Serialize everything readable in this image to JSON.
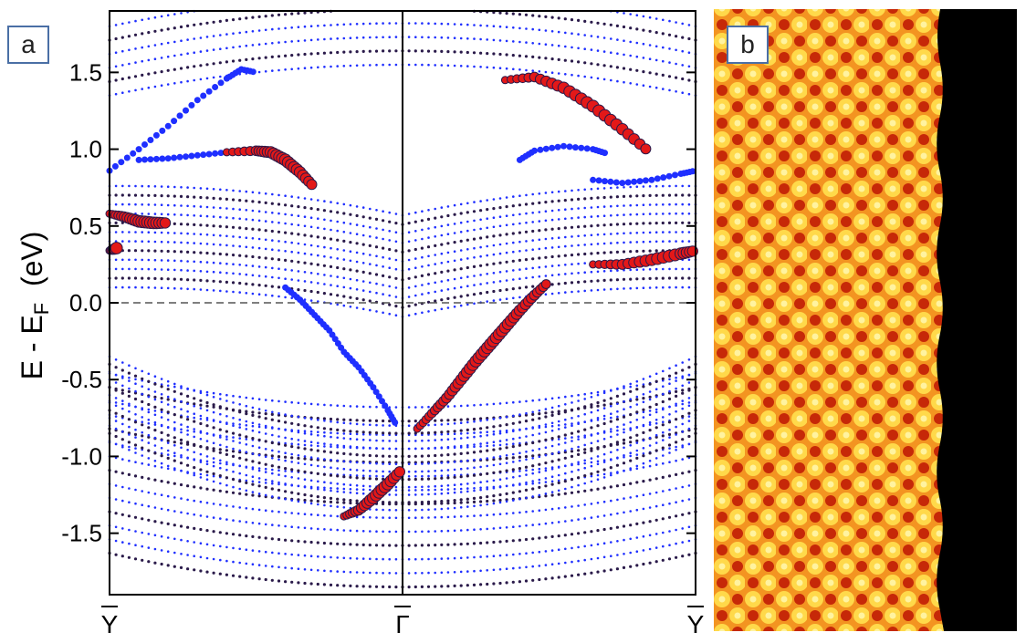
{
  "panels": {
    "a": {
      "label": "a"
    },
    "b": {
      "label": "b"
    }
  },
  "colors": {
    "blue": "#1f2fff",
    "red": "#e31818",
    "dark": "#2a1a4a",
    "stm_bright": "#ffe55a",
    "stm_mid": "#f08a1a",
    "stm_dark": "#a61200",
    "stm_edge": "#000000"
  },
  "chart_data": {
    "type": "scatter",
    "title": "",
    "xlabel": "",
    "ylabel_main": "E - E",
    "ylabel_sub": "F",
    "ylabel_unit": "(eV)",
    "xlim": [
      -1,
      1
    ],
    "ylim": [
      -1.9,
      1.9
    ],
    "x_ticks": [
      {
        "value": -1,
        "label": "Y"
      },
      {
        "value": 0,
        "label": "Γ"
      },
      {
        "value": 1,
        "label": "Y"
      }
    ],
    "y_ticks": [
      {
        "value": 1.5,
        "label": "1.5"
      },
      {
        "value": 1.0,
        "label": "1.0"
      },
      {
        "value": 0.5,
        "label": "0.5"
      },
      {
        "value": 0.0,
        "label": "0.0"
      },
      {
        "value": -0.5,
        "label": "-0.5"
      },
      {
        "value": -1.0,
        "label": "-1.0"
      },
      {
        "value": -1.5,
        "label": "-1.5"
      }
    ],
    "fermi_level": 0.0,
    "gamma_line": 0.0,
    "featured_bands": [
      {
        "name": "blue-left-upper",
        "color": "blue",
        "points": [
          [
            -1,
            0.86
          ],
          [
            -0.9,
            1.0
          ],
          [
            -0.8,
            1.15
          ],
          [
            -0.7,
            1.32
          ],
          [
            -0.6,
            1.46
          ],
          [
            -0.55,
            1.52
          ],
          [
            -0.5,
            1.5
          ]
        ]
      },
      {
        "name": "blue-left-flat",
        "color": "blue",
        "points": [
          [
            -0.9,
            0.93
          ],
          [
            -0.8,
            0.94
          ],
          [
            -0.7,
            0.96
          ],
          [
            -0.6,
            0.98
          ],
          [
            -0.5,
            0.98
          ],
          [
            -0.45,
            0.97
          ]
        ]
      },
      {
        "name": "red-left-hump",
        "color": "red",
        "points": [
          [
            -0.6,
            0.98
          ],
          [
            -0.5,
            0.99
          ],
          [
            -0.45,
            0.98
          ],
          [
            -0.4,
            0.93
          ],
          [
            -0.35,
            0.85
          ],
          [
            -0.3,
            0.75
          ]
        ]
      },
      {
        "name": "red-left-edge",
        "color": "red",
        "points": [
          [
            -1,
            0.58
          ],
          [
            -0.95,
            0.56
          ],
          [
            -0.9,
            0.53
          ],
          [
            -0.85,
            0.52
          ],
          [
            -0.8,
            0.52
          ]
        ]
      },
      {
        "name": "red-left-low",
        "color": "red",
        "points": [
          [
            -1,
            0.34
          ],
          [
            -0.97,
            0.36
          ]
        ]
      },
      {
        "name": "blue-diagonal",
        "color": "blue",
        "points": [
          [
            -0.4,
            0.1
          ],
          [
            -0.35,
            0.02
          ],
          [
            -0.3,
            -0.08
          ],
          [
            -0.25,
            -0.18
          ],
          [
            -0.2,
            -0.32
          ],
          [
            -0.15,
            -0.42
          ],
          [
            -0.1,
            -0.55
          ],
          [
            -0.05,
            -0.7
          ],
          [
            -0.02,
            -0.8
          ]
        ]
      },
      {
        "name": "red-lower-left",
        "color": "red",
        "points": [
          [
            -0.2,
            -1.39
          ],
          [
            -0.15,
            -1.35
          ],
          [
            -0.1,
            -1.27
          ],
          [
            -0.05,
            -1.18
          ],
          [
            0,
            -1.08
          ]
        ]
      },
      {
        "name": "red-right-diagonal",
        "color": "red",
        "points": [
          [
            0.05,
            -0.82
          ],
          [
            0.1,
            -0.72
          ],
          [
            0.15,
            -0.62
          ],
          [
            0.2,
            -0.5
          ],
          [
            0.25,
            -0.38
          ],
          [
            0.3,
            -0.27
          ],
          [
            0.35,
            -0.16
          ],
          [
            0.4,
            -0.05
          ],
          [
            0.45,
            0.05
          ],
          [
            0.5,
            0.14
          ]
        ]
      },
      {
        "name": "red-right-hump",
        "color": "red",
        "points": [
          [
            0.35,
            1.45
          ],
          [
            0.45,
            1.47
          ],
          [
            0.55,
            1.4
          ],
          [
            0.65,
            1.28
          ],
          [
            0.75,
            1.13
          ],
          [
            0.85,
            0.97
          ]
        ]
      },
      {
        "name": "blue-right-mid",
        "color": "blue",
        "points": [
          [
            0.4,
            0.93
          ],
          [
            0.45,
            0.99
          ],
          [
            0.55,
            1.02
          ],
          [
            0.65,
            1.0
          ],
          [
            0.7,
            0.97
          ]
        ]
      },
      {
        "name": "blue-right-edge",
        "color": "blue",
        "points": [
          [
            0.65,
            0.8
          ],
          [
            0.75,
            0.78
          ],
          [
            0.85,
            0.8
          ],
          [
            0.95,
            0.84
          ],
          [
            1,
            0.86
          ]
        ]
      },
      {
        "name": "red-right-low",
        "color": "red",
        "points": [
          [
            0.65,
            0.25
          ],
          [
            0.75,
            0.25
          ],
          [
            0.85,
            0.28
          ],
          [
            0.95,
            0.32
          ],
          [
            1,
            0.34
          ]
        ]
      }
    ]
  }
}
